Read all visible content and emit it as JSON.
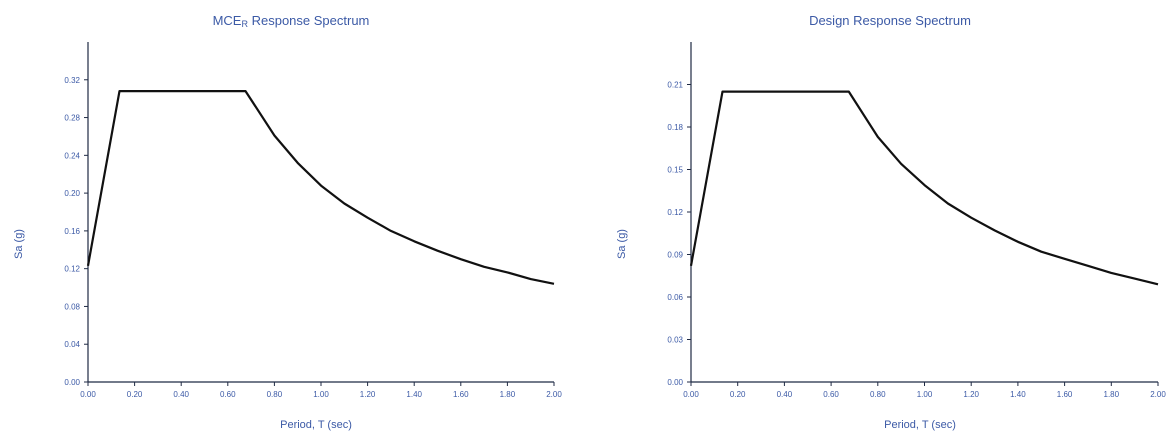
{
  "chart_data": [
    {
      "type": "line",
      "title": "MCEᴿ Response Spectrum",
      "title_main": "MCE",
      "title_sub": "R",
      "title_rest": " Response Spectrum",
      "xlabel": "Period, T (sec)",
      "ylabel": "Sa (g)",
      "xlim": [
        0,
        2.0
      ],
      "ylim": [
        0,
        0.36
      ],
      "xticks": [
        "0.00",
        "0.20",
        "0.40",
        "0.60",
        "0.80",
        "1.00",
        "1.20",
        "1.40",
        "1.60",
        "1.80",
        "2.00"
      ],
      "yticks": [
        "0.00",
        "0.04",
        "0.08",
        "0.12",
        "0.16",
        "0.20",
        "0.24",
        "0.28",
        "0.32"
      ],
      "grid": false,
      "series": [
        {
          "x": [
            0.0,
            0.135,
            0.25,
            0.4,
            0.5,
            0.6,
            0.676,
            0.8,
            0.9,
            1.0,
            1.1,
            1.2,
            1.3,
            1.4,
            1.5,
            1.6,
            1.7,
            1.8,
            1.9,
            2.0
          ],
          "y": [
            0.123,
            0.308,
            0.308,
            0.308,
            0.308,
            0.308,
            0.308,
            0.261,
            0.232,
            0.208,
            0.189,
            0.174,
            0.16,
            0.149,
            0.139,
            0.13,
            0.122,
            0.116,
            0.109,
            0.104
          ]
        }
      ]
    },
    {
      "type": "line",
      "title": "Design Response Spectrum",
      "xlabel": "Period, T (sec)",
      "ylabel": "Sa (g)",
      "xlim": [
        0,
        2.0
      ],
      "ylim": [
        0,
        0.24
      ],
      "xticks": [
        "0.00",
        "0.20",
        "0.40",
        "0.60",
        "0.80",
        "1.00",
        "1.20",
        "1.40",
        "1.60",
        "1.80",
        "2.00"
      ],
      "yticks": [
        "0.00",
        "0.03",
        "0.06",
        "0.09",
        "0.12",
        "0.15",
        "0.18",
        "0.21"
      ],
      "grid": false,
      "series": [
        {
          "x": [
            0.0,
            0.135,
            0.25,
            0.4,
            0.5,
            0.6,
            0.676,
            0.8,
            0.9,
            1.0,
            1.1,
            1.2,
            1.3,
            1.4,
            1.5,
            1.6,
            1.7,
            1.8,
            1.9,
            2.0
          ],
          "y": [
            0.082,
            0.205,
            0.205,
            0.205,
            0.205,
            0.205,
            0.205,
            0.173,
            0.154,
            0.139,
            0.126,
            0.116,
            0.107,
            0.099,
            0.092,
            0.087,
            0.082,
            0.077,
            0.073,
            0.069
          ]
        }
      ]
    }
  ]
}
